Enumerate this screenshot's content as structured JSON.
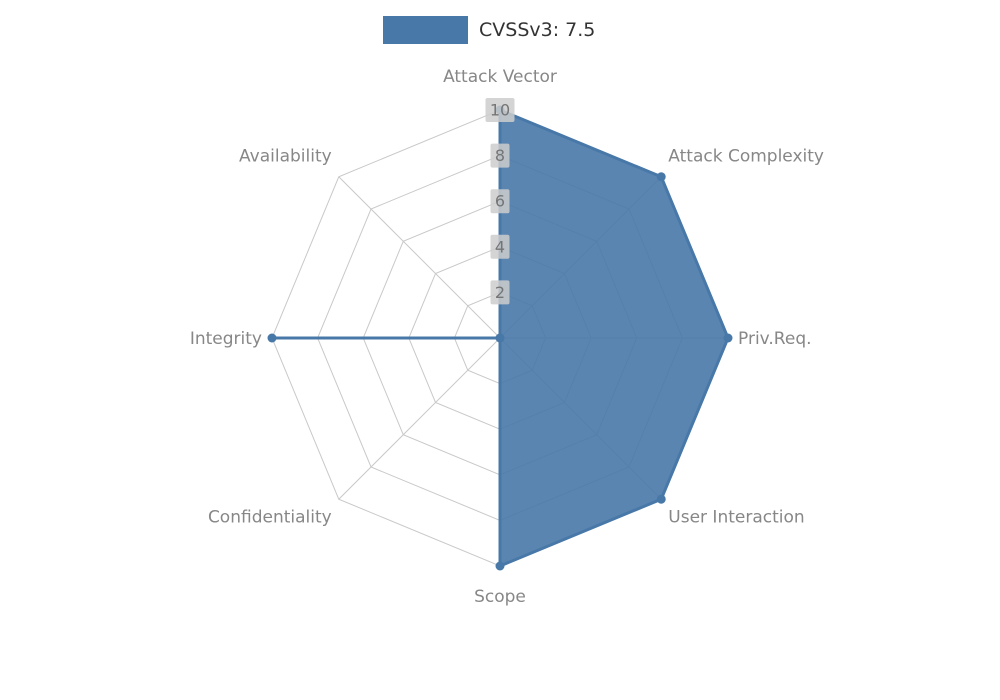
{
  "chart": {
    "legend": {
      "label": "CVSSv3: 7.5"
    },
    "colors": {
      "series": "#4878a8",
      "series_fill_opacity": 0.9,
      "grid": "#c9c9c9",
      "axis_label": "#878787",
      "tick_text": "#757575",
      "tick_backdrop": "#cccccc",
      "legend_text": "#333333",
      "background": "#ffffff"
    }
  },
  "chart_data": {
    "type": "radar",
    "title": "CVSSv3: 7.5",
    "categories": [
      "Attack Vector",
      "Attack Complexity",
      "Priv.Req.",
      "User Interaction",
      "Scope",
      "Confidentiality",
      "Integrity",
      "Availability"
    ],
    "series": [
      {
        "name": "CVSSv3: 7.5",
        "values": [
          10,
          10,
          10,
          10,
          10,
          0,
          10,
          0
        ]
      }
    ],
    "rlim": [
      0,
      10
    ],
    "ticks": [
      2,
      4,
      6,
      8,
      10
    ],
    "grid": true,
    "legend_position": "top-center",
    "start_axis": "top",
    "direction": "clockwise"
  }
}
